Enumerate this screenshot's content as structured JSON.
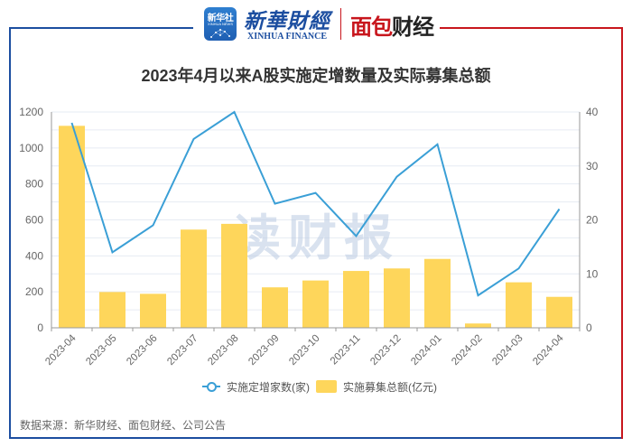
{
  "header": {
    "app_icon_text": "新华社",
    "app_icon_subtext": "XINHUA NEWS",
    "brand_cn": "新華財經",
    "brand_en": "XINHUA FINANCE",
    "partner_brand_red": "面包",
    "partner_brand_black": "财经"
  },
  "colors": {
    "frame_left": "#1c4ea0",
    "frame_right": "#c8161d",
    "bar": "#fed65b",
    "line": "#3a9fd6",
    "grid": "#e6ebf3",
    "axis": "#999999"
  },
  "watermark": "读财报",
  "chart_data": {
    "type": "bar+line",
    "title": "2023年4月以来A股实施定增数量及实际募集总额",
    "categories": [
      "2023-04",
      "2023-05",
      "2023-06",
      "2023-07",
      "2023-08",
      "2023-09",
      "2023-10",
      "2023-11",
      "2023-12",
      "2024-01",
      "2024-02",
      "2024-03",
      "2024-04"
    ],
    "series": [
      {
        "name": "实施定增家数(家)",
        "type": "line",
        "axis": "right",
        "values": [
          38,
          14,
          19,
          35,
          40,
          23,
          25,
          17,
          28,
          34,
          6,
          11,
          22
        ]
      },
      {
        "name": "实施募集总额(亿元)",
        "type": "bar",
        "axis": "left",
        "values": [
          1123,
          199,
          189,
          546,
          578,
          225,
          263,
          316,
          330,
          383,
          24,
          253,
          172
        ]
      }
    ],
    "left_axis": {
      "ylim": [
        0,
        1200
      ],
      "ticks": [
        0,
        200,
        400,
        600,
        800,
        1000,
        1200
      ]
    },
    "right_axis": {
      "ylim": [
        0,
        40
      ],
      "ticks": [
        0,
        10,
        20,
        30,
        40
      ]
    },
    "grid": true,
    "legend_position": "bottom"
  },
  "legend": {
    "line_label": "实施定增家数(家)",
    "bar_label": "实施募集总额(亿元)"
  },
  "footer": {
    "source": "数据来源：新华财经、面包财经、公司公告"
  }
}
